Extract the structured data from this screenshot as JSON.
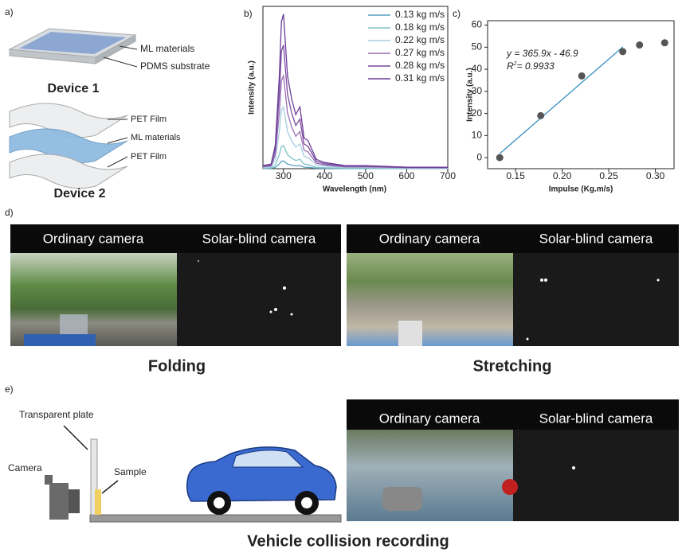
{
  "panel_labels": [
    "a)",
    "b)",
    "c)",
    "d)",
    "e)"
  ],
  "panel_a": {
    "annotations": [
      "ML materials",
      "PDMS substrate",
      "PET Film",
      "ML materials",
      "PET Film"
    ],
    "device_labels": [
      "Device 1",
      "Device 2"
    ]
  },
  "chart_data": [
    {
      "type": "line",
      "x_label": "Wavelength (nm)",
      "y_label": "Intensity (a.u.)",
      "x": [
        250,
        270,
        280,
        290,
        295,
        300,
        310,
        320,
        330,
        340,
        350,
        360,
        380,
        400,
        450,
        500,
        600,
        700
      ],
      "xlim": [
        250,
        700
      ],
      "xticks": [
        300,
        400,
        500,
        600,
        700
      ],
      "ylim": [
        0,
        105
      ],
      "legend": "upper right",
      "series": [
        {
          "name": "0.13 kg m/s",
          "color": "#5a9fc0",
          "values": [
            0.1,
            0.2,
            0.8,
            3,
            4.8,
            5,
            3,
            2.3,
            1.8,
            2,
            1,
            0.9,
            0.3,
            0.2,
            0.1,
            0.1,
            0.1,
            0.1
          ]
        },
        {
          "name": "0.18 kg m/s",
          "color": "#7fc0c8",
          "values": [
            0.3,
            0.5,
            2.3,
            9,
            14.3,
            15,
            9,
            6.8,
            5.3,
            6,
            3,
            2.7,
            0.9,
            0.6,
            0.3,
            0.3,
            0.2,
            0.2
          ]
        },
        {
          "name": "0.22 kg m/s",
          "color": "#a8cde0",
          "values": [
            0.8,
            1.2,
            6,
            24,
            38,
            40,
            24,
            18,
            14,
            16,
            8,
            7.2,
            2.4,
            1.6,
            0.8,
            0.8,
            0.4,
            0.4
          ]
        },
        {
          "name": "0.27 kg m/s",
          "color": "#9a6fb5",
          "values": [
            1.2,
            1.8,
            9,
            36,
            57,
            60,
            36,
            27,
            21,
            24,
            12,
            10.8,
            3.6,
            2.4,
            1.2,
            1.2,
            0.6,
            0.6
          ]
        },
        {
          "name": "0.28 kg m/s",
          "color": "#7a4a9e",
          "values": [
            1.6,
            2.4,
            12,
            48,
            76,
            80,
            48,
            36,
            28,
            32,
            16,
            14.4,
            4.8,
            3.2,
            1.6,
            1.6,
            0.8,
            0.8
          ]
        },
        {
          "name": "0.31 kg m/s",
          "color": "#6a3d9a",
          "values": [
            2,
            3,
            15,
            60,
            95,
            100,
            60,
            45,
            35,
            40,
            20,
            18,
            6,
            4,
            2,
            2,
            1,
            1
          ]
        }
      ]
    },
    {
      "type": "scatter",
      "x_label": "Impulse (Kg.m/s)",
      "y_label": "Intensity (a.u.)",
      "color": "#555555",
      "x": [
        0.133,
        0.177,
        0.221,
        0.265,
        0.283,
        0.31
      ],
      "values": [
        0,
        19,
        37,
        48,
        51,
        52
      ],
      "xlim": [
        0.12,
        0.32
      ],
      "xticks": [
        {
          "value": 0.15,
          "label": "0.15"
        },
        {
          "value": 0.2,
          "label": "0.20"
        },
        {
          "value": 0.25,
          "label": "0.25"
        },
        {
          "value": 0.3,
          "label": "0.30"
        }
      ],
      "ylim": [
        -5,
        62
      ],
      "yticks": [
        0,
        10,
        20,
        30,
        40,
        50,
        60
      ],
      "fit": {
        "color": "#3a8fc0",
        "x": [
          0.133,
          0.265
        ],
        "values": [
          1.8,
          50.1
        ]
      },
      "equation": "y = 365.9x - 46.9",
      "r_squared": {
        "base": "R",
        "sup": "2",
        "rest": "= 0.9933"
      }
    }
  ],
  "panel_d": {
    "camera_labels": [
      "Ordinary camera",
      "Solar-blind camera"
    ],
    "captions": [
      "Folding",
      "Stretching"
    ]
  },
  "panel_e": {
    "annotations": [
      "Transparent plate",
      "Camera",
      "Sample"
    ],
    "camera_labels": [
      "Ordinary camera",
      "Solar-blind camera"
    ],
    "caption": "Vehicle collision recording"
  }
}
